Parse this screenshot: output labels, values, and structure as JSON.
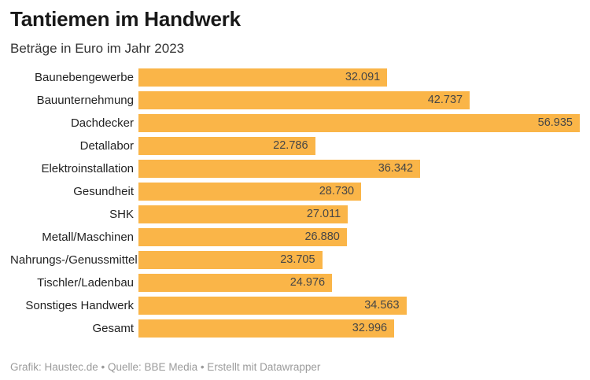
{
  "header": {
    "title": "Tantiemen im Handwerk",
    "subtitle": "Beträge in Euro im Jahr 2023"
  },
  "footer": {
    "attribution": "Grafik: Haustec.de • Quelle: BBE Media • Erstellt mit Datawrapper"
  },
  "colors": {
    "bar": "#FAB548",
    "title_text": "#181818",
    "subtitle_text": "#333333",
    "category_label_text": "#222222",
    "value_label_text": "#464646",
    "footer_text": "#9b9b9b",
    "background": "#ffffff"
  },
  "chart_data": {
    "type": "bar",
    "orientation": "horizontal",
    "title": "Tantiemen im Handwerk",
    "subtitle": "Beträge in Euro im Jahr 2023",
    "categories": [
      "Baunebengewerbe",
      "Bauunternehmung",
      "Dachdecker",
      "Detallabor",
      "Elektroinstallation",
      "Gesundheit",
      "SHK",
      "Metall/Maschinen",
      "Nahrungs-/Genussmittel",
      "Tischler/Ladenbau",
      "Sonstiges Handwerk",
      "Gesamt"
    ],
    "values": [
      32091,
      42737,
      56935,
      22786,
      36342,
      28730,
      27011,
      26880,
      23705,
      24976,
      34563,
      32996
    ],
    "value_labels": [
      "32.091",
      "42.737",
      "56.935",
      "22.786",
      "36.342",
      "28.730",
      "27.011",
      "26.880",
      "23.705",
      "24.976",
      "34.563",
      "32.996"
    ],
    "xlabel": "",
    "ylabel": "",
    "xlim": [
      0,
      56935
    ],
    "grid": false,
    "legend": false,
    "value_label_position": "inside-end",
    "unit": "Euro",
    "year": "2023"
  }
}
